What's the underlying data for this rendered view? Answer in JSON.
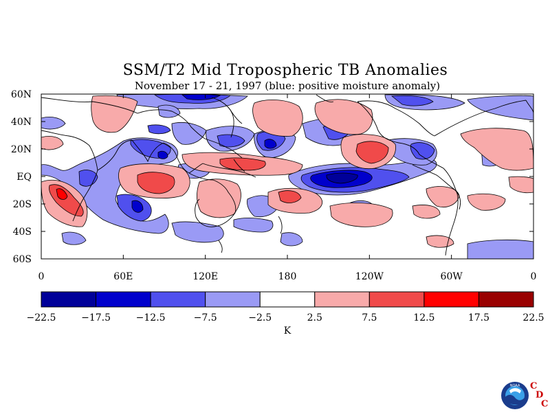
{
  "title": "SSM/T2 Mid Tropospheric TB Anomalies",
  "subtitle": "November 17 - 21, 1997 (blue: positive moisture anomaly)",
  "lat_ticks": [
    "60N",
    "40N",
    "20N",
    "EQ",
    "20S",
    "40S",
    "60S"
  ],
  "lon_ticks": [
    "0",
    "60E",
    "120E",
    "180",
    "120W",
    "60W",
    "0"
  ],
  "colorbar": {
    "labels": [
      "-22.5",
      "-17.5",
      "-12.5",
      "-7.5",
      "-2.5",
      "2.5",
      "7.5",
      "12.5",
      "17.5",
      "22.5"
    ],
    "colors": [
      "#000099",
      "#0000cc",
      "#5050ee",
      "#9a9af5",
      "#ffffff",
      "#f8aaaa",
      "#f04a4a",
      "#ff0000",
      "#990000"
    ],
    "unit": "K"
  },
  "logo": {
    "noaa_text": "NOAA",
    "cdc_letters": [
      "C",
      "D",
      "C"
    ],
    "accent_color": "#cc0000"
  }
}
